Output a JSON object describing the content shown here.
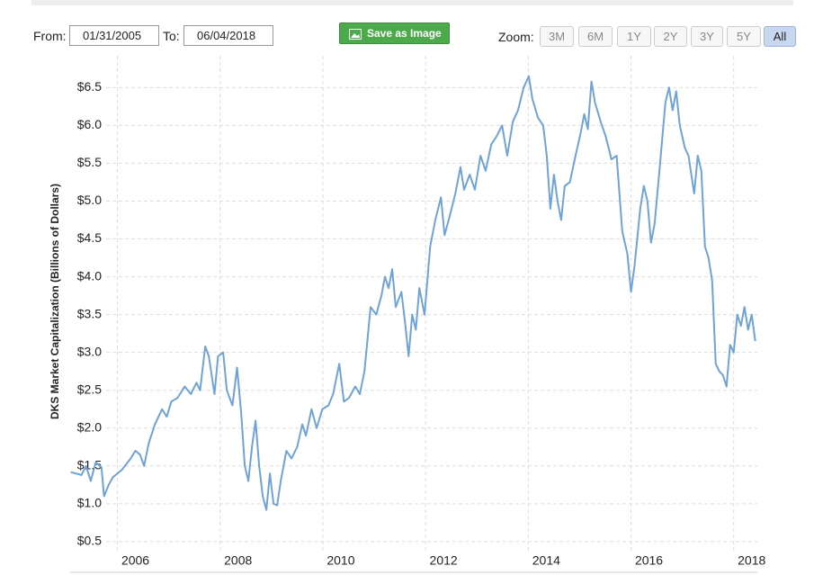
{
  "ui": {
    "from_label": "From:",
    "from_value": "01/31/2005",
    "to_label": "To:",
    "to_value": "06/04/2018",
    "save_button": "Save as Image",
    "zoom_label": "Zoom:",
    "zoom_buttons": [
      "3M",
      "6M",
      "1Y",
      "2Y",
      "3Y",
      "5Y",
      "All"
    ],
    "zoom_active": "All"
  },
  "chart_data": {
    "type": "line",
    "y_label": "DKS Market Capitalization (Billions of Dollars)",
    "color": "#6fa3d6",
    "grid": true,
    "xlim": [
      2005.08,
      2018.46
    ],
    "xticks": [
      2006,
      2008,
      2010,
      2012,
      2014,
      2016,
      2018
    ],
    "ylim": [
      0.38,
      6.92
    ],
    "yticks": [
      {
        "value": 0.5,
        "label": "$0.5"
      },
      {
        "value": 1.0,
        "label": "$1.0"
      },
      {
        "value": 1.5,
        "label": "$1.5"
      },
      {
        "value": 2.0,
        "label": "$2.0"
      },
      {
        "value": 2.5,
        "label": "$2.5"
      },
      {
        "value": 3.0,
        "label": "$3.0"
      },
      {
        "value": 3.5,
        "label": "$3.5"
      },
      {
        "value": 4.0,
        "label": "$4.0"
      },
      {
        "value": 4.5,
        "label": "$4.5"
      },
      {
        "value": 5.0,
        "label": "$5.0"
      },
      {
        "value": 5.5,
        "label": "$5.5"
      },
      {
        "value": 6.0,
        "label": "$6.0"
      },
      {
        "value": 6.5,
        "label": "$6.5"
      }
    ],
    "x": [
      2005.09,
      2005.3,
      2005.39,
      2005.48,
      2005.58,
      2005.69,
      2005.74,
      2005.83,
      2005.91,
      2006.09,
      2006.26,
      2006.35,
      2006.44,
      2006.52,
      2006.61,
      2006.73,
      2006.87,
      2006.96,
      2007.05,
      2007.17,
      2007.31,
      2007.43,
      2007.54,
      2007.61,
      2007.71,
      2007.78,
      2007.89,
      2007.96,
      2008.06,
      2008.13,
      2008.24,
      2008.33,
      2008.41,
      2008.48,
      2008.55,
      2008.62,
      2008.69,
      2008.76,
      2008.83,
      2008.9,
      2008.97,
      2009.04,
      2009.11,
      2009.18,
      2009.29,
      2009.39,
      2009.5,
      2009.6,
      2009.67,
      2009.78,
      2009.88,
      2009.99,
      2010.11,
      2010.2,
      2010.32,
      2010.41,
      2010.51,
      2010.63,
      2010.72,
      2010.81,
      2010.93,
      2011.04,
      2011.14,
      2011.21,
      2011.28,
      2011.35,
      2011.42,
      2011.53,
      2011.6,
      2011.67,
      2011.74,
      2011.81,
      2011.88,
      2011.98,
      2012.09,
      2012.19,
      2012.3,
      2012.37,
      2012.47,
      2012.58,
      2012.68,
      2012.75,
      2012.86,
      2012.96,
      2013.07,
      2013.17,
      2013.28,
      2013.38,
      2013.49,
      2013.59,
      2013.7,
      2013.8,
      2013.91,
      2014.01,
      2014.08,
      2014.19,
      2014.29,
      2014.36,
      2014.43,
      2014.5,
      2014.57,
      2014.64,
      2014.71,
      2014.81,
      2014.92,
      2015.02,
      2015.09,
      2015.16,
      2015.23,
      2015.3,
      2015.41,
      2015.51,
      2015.62,
      2015.72,
      2015.83,
      2015.93,
      2016.0,
      2016.07,
      2016.18,
      2016.25,
      2016.32,
      2016.39,
      2016.46,
      2016.56,
      2016.67,
      2016.74,
      2016.81,
      2016.88,
      2016.95,
      2017.05,
      2017.12,
      2017.23,
      2017.3,
      2017.37,
      2017.44,
      2017.51,
      2017.58,
      2017.65,
      2017.72,
      2017.79,
      2017.86,
      2017.93,
      2018.0,
      2018.07,
      2018.14,
      2018.21,
      2018.28,
      2018.35,
      2018.42
    ],
    "values": [
      1.42,
      1.38,
      1.5,
      1.3,
      1.55,
      1.48,
      1.1,
      1.25,
      1.35,
      1.45,
      1.6,
      1.7,
      1.65,
      1.5,
      1.8,
      2.05,
      2.25,
      2.15,
      2.35,
      2.4,
      2.55,
      2.45,
      2.6,
      2.5,
      3.08,
      2.95,
      2.45,
      2.95,
      3.0,
      2.5,
      2.3,
      2.8,
      2.2,
      1.5,
      1.3,
      1.75,
      2.1,
      1.5,
      1.1,
      0.92,
      1.4,
      1.0,
      0.98,
      1.3,
      1.7,
      1.6,
      1.75,
      2.05,
      1.9,
      2.25,
      2.0,
      2.25,
      2.3,
      2.45,
      2.85,
      2.35,
      2.4,
      2.55,
      2.45,
      2.75,
      3.6,
      3.5,
      3.75,
      4.0,
      3.85,
      4.1,
      3.6,
      3.8,
      3.4,
      2.95,
      3.5,
      3.3,
      3.85,
      3.5,
      4.4,
      4.75,
      5.05,
      4.55,
      4.8,
      5.1,
      5.45,
      5.15,
      5.35,
      5.15,
      5.6,
      5.4,
      5.75,
      5.85,
      6.0,
      5.6,
      6.05,
      6.2,
      6.5,
      6.65,
      6.35,
      6.1,
      6.0,
      5.6,
      4.9,
      5.35,
      5.0,
      4.75,
      5.2,
      5.25,
      5.6,
      5.9,
      6.15,
      5.95,
      6.58,
      6.3,
      6.05,
      5.85,
      5.55,
      5.6,
      4.6,
      4.3,
      3.8,
      4.15,
      4.9,
      5.2,
      5.0,
      4.45,
      4.7,
      5.45,
      6.3,
      6.5,
      6.2,
      6.45,
      6.0,
      5.7,
      5.6,
      5.1,
      5.6,
      5.4,
      4.4,
      4.25,
      3.95,
      2.85,
      2.75,
      2.7,
      2.55,
      3.1,
      3.0,
      3.5,
      3.35,
      3.6,
      3.3,
      3.5,
      3.15
    ]
  }
}
